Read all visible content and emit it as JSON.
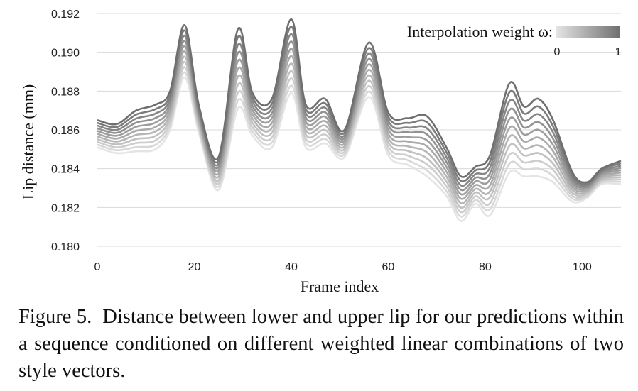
{
  "chart_data": {
    "type": "line",
    "title": "",
    "xlabel": "Frame index",
    "ylabel": "Lip distance (mm)",
    "xlim": [
      0,
      108
    ],
    "ylim": [
      0.18,
      0.192
    ],
    "x_ticks": [
      "0",
      "20",
      "40",
      "60",
      "80",
      "100"
    ],
    "y_ticks": [
      "0.180",
      "0.182",
      "0.184",
      "0.186",
      "0.188",
      "0.190",
      "0.192"
    ],
    "grid": "horizontal",
    "legend": {
      "label": "Interpolation weight ω:",
      "placement": "top-right",
      "min_label": "0",
      "max_label": "1",
      "color_light": "#e4e4e4",
      "color_dark": "#6f6f6f"
    },
    "curve_weights": [
      0,
      0.1,
      0.2,
      0.3,
      0.4,
      0.5,
      0.6,
      0.7,
      0.8,
      0.9,
      1
    ],
    "x": [
      0,
      4,
      8,
      12,
      15,
      18,
      21,
      25,
      29,
      32,
      36,
      40,
      43,
      47,
      51,
      56,
      60,
      64,
      68,
      72,
      75,
      78,
      81,
      85,
      88,
      91,
      94,
      98,
      101,
      104,
      108
    ],
    "series_w0": [
      0.1851,
      0.1848,
      0.1849,
      0.185,
      0.186,
      0.1887,
      0.1858,
      0.1829,
      0.1871,
      0.1857,
      0.1851,
      0.1879,
      0.1851,
      0.1853,
      0.1846,
      0.1877,
      0.1847,
      0.1842,
      0.1836,
      0.1826,
      0.1813,
      0.1822,
      0.1816,
      0.1838,
      0.1836,
      0.1836,
      0.1833,
      0.1823,
      0.1825,
      0.1832,
      0.1832
    ],
    "series_w1": [
      0.1865,
      0.1863,
      0.187,
      0.1873,
      0.188,
      0.1914,
      0.1872,
      0.1846,
      0.1912,
      0.1879,
      0.1876,
      0.1917,
      0.1873,
      0.1876,
      0.186,
      0.1905,
      0.1869,
      0.1866,
      0.1867,
      0.1851,
      0.1836,
      0.1841,
      0.1847,
      0.1884,
      0.1872,
      0.1876,
      0.1865,
      0.1838,
      0.1833,
      0.184,
      0.1844
    ]
  },
  "caption": {
    "label": "Figure 5.",
    "text": "Distance between lower and upper lip for our predictions within a sequence conditioned on different weighted linear combinations of two style vectors."
  }
}
